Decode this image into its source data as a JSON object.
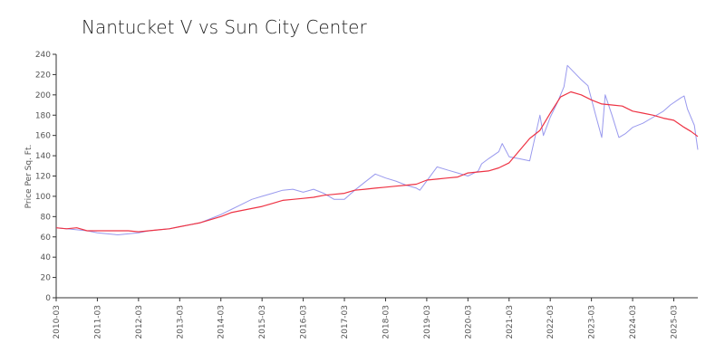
{
  "chart_data": {
    "type": "line",
    "title": "Nantucket V vs Sun City Center",
    "xlabel": "",
    "ylabel": "Price Per Sq. Ft.",
    "ylim": [
      0,
      240
    ],
    "xlim": [
      "2010-03",
      "2025-10"
    ],
    "y_ticks": [
      0,
      20,
      40,
      60,
      80,
      100,
      120,
      140,
      160,
      180,
      200,
      220,
      240
    ],
    "x_ticks": [
      "2010-03",
      "2011-03",
      "2012-03",
      "2013-03",
      "2014-03",
      "2015-03",
      "2016-03",
      "2017-03",
      "2018-03",
      "2019-03",
      "2020-03",
      "2021-03",
      "2022-03",
      "2023-03",
      "2024-03",
      "2025-03"
    ],
    "grid": false,
    "legend": "none",
    "series": [
      {
        "color": "#9999ee",
        "points": [
          [
            "2010-03",
            69
          ],
          [
            "2010-06",
            68
          ],
          [
            "2010-09",
            67
          ],
          [
            "2010-12",
            66
          ],
          [
            "2011-03",
            64
          ],
          [
            "2011-06",
            63
          ],
          [
            "2011-09",
            62
          ],
          [
            "2011-12",
            63
          ],
          [
            "2012-03",
            64
          ],
          [
            "2012-06",
            66
          ],
          [
            "2012-09",
            67
          ],
          [
            "2012-12",
            68
          ],
          [
            "2013-03",
            70
          ],
          [
            "2013-06",
            72
          ],
          [
            "2013-09",
            74
          ],
          [
            "2013-12",
            78
          ],
          [
            "2014-03",
            82
          ],
          [
            "2014-06",
            87
          ],
          [
            "2014-09",
            92
          ],
          [
            "2014-12",
            97
          ],
          [
            "2015-03",
            100
          ],
          [
            "2015-06",
            103
          ],
          [
            "2015-09",
            106
          ],
          [
            "2015-12",
            107
          ],
          [
            "2016-03",
            104
          ],
          [
            "2016-06",
            107
          ],
          [
            "2016-09",
            103
          ],
          [
            "2016-12",
            97
          ],
          [
            "2017-03",
            97
          ],
          [
            "2017-06",
            106
          ],
          [
            "2017-09",
            114
          ],
          [
            "2017-12",
            122
          ],
          [
            "2018-03",
            118
          ],
          [
            "2018-06",
            115
          ],
          [
            "2018-09",
            111
          ],
          [
            "2018-12",
            108
          ],
          [
            "2019-01",
            106
          ],
          [
            "2019-06",
            129
          ],
          [
            "2019-09",
            126
          ],
          [
            "2019-12",
            123
          ],
          [
            "2020-03",
            120
          ],
          [
            "2020-06",
            125
          ],
          [
            "2020-07",
            132
          ],
          [
            "2020-09",
            137
          ],
          [
            "2020-12",
            144
          ],
          [
            "2021-01",
            152
          ],
          [
            "2021-03",
            139
          ],
          [
            "2021-06",
            137
          ],
          [
            "2021-09",
            135
          ],
          [
            "2021-12",
            180
          ],
          [
            "2022-01",
            160
          ],
          [
            "2022-03",
            178
          ],
          [
            "2022-05",
            192
          ],
          [
            "2022-07",
            208
          ],
          [
            "2022-08",
            229
          ],
          [
            "2022-10",
            222
          ],
          [
            "2022-12",
            215
          ],
          [
            "2023-02",
            209
          ],
          [
            "2023-04",
            183
          ],
          [
            "2023-06",
            158
          ],
          [
            "2023-07",
            200
          ],
          [
            "2023-09",
            180
          ],
          [
            "2023-11",
            158
          ],
          [
            "2024-01",
            162
          ],
          [
            "2024-03",
            168
          ],
          [
            "2024-06",
            172
          ],
          [
            "2024-09",
            178
          ],
          [
            "2024-12",
            184
          ],
          [
            "2025-02",
            190
          ],
          [
            "2025-05",
            197
          ],
          [
            "2025-06",
            199
          ],
          [
            "2025-07",
            186
          ],
          [
            "2025-09",
            170
          ],
          [
            "2025-10",
            146
          ]
        ]
      },
      {
        "color": "#ee3344",
        "points": [
          [
            "2010-03",
            69
          ],
          [
            "2010-06",
            68
          ],
          [
            "2010-09",
            69
          ],
          [
            "2010-12",
            66
          ],
          [
            "2011-03",
            66
          ],
          [
            "2011-06",
            66
          ],
          [
            "2011-09",
            66
          ],
          [
            "2011-12",
            66
          ],
          [
            "2012-03",
            65
          ],
          [
            "2012-06",
            66
          ],
          [
            "2012-09",
            67
          ],
          [
            "2012-12",
            68
          ],
          [
            "2013-03",
            70
          ],
          [
            "2013-06",
            72
          ],
          [
            "2013-09",
            74
          ],
          [
            "2013-12",
            77
          ],
          [
            "2014-03",
            80
          ],
          [
            "2014-06",
            84
          ],
          [
            "2014-09",
            86
          ],
          [
            "2014-12",
            88
          ],
          [
            "2015-03",
            90
          ],
          [
            "2015-06",
            93
          ],
          [
            "2015-09",
            96
          ],
          [
            "2015-12",
            97
          ],
          [
            "2016-03",
            98
          ],
          [
            "2016-06",
            99
          ],
          [
            "2016-09",
            101
          ],
          [
            "2016-12",
            102
          ],
          [
            "2017-03",
            103
          ],
          [
            "2017-06",
            106
          ],
          [
            "2017-09",
            107
          ],
          [
            "2017-12",
            108
          ],
          [
            "2018-03",
            109
          ],
          [
            "2018-06",
            110
          ],
          [
            "2018-09",
            111
          ],
          [
            "2018-12",
            112
          ],
          [
            "2019-03",
            116
          ],
          [
            "2019-06",
            117
          ],
          [
            "2019-09",
            118
          ],
          [
            "2019-12",
            119
          ],
          [
            "2020-03",
            123
          ],
          [
            "2020-06",
            124
          ],
          [
            "2020-09",
            125
          ],
          [
            "2020-12",
            128
          ],
          [
            "2021-03",
            133
          ],
          [
            "2021-06",
            145
          ],
          [
            "2021-09",
            157
          ],
          [
            "2021-12",
            165
          ],
          [
            "2022-03",
            182
          ],
          [
            "2022-06",
            198
          ],
          [
            "2022-09",
            203
          ],
          [
            "2022-12",
            200
          ],
          [
            "2023-03",
            195
          ],
          [
            "2023-06",
            191
          ],
          [
            "2023-09",
            190
          ],
          [
            "2023-12",
            189
          ],
          [
            "2024-03",
            184
          ],
          [
            "2024-06",
            182
          ],
          [
            "2024-09",
            180
          ],
          [
            "2024-12",
            177
          ],
          [
            "2025-03",
            175
          ],
          [
            "2025-06",
            168
          ],
          [
            "2025-08",
            164
          ],
          [
            "2025-10",
            159
          ]
        ]
      }
    ]
  }
}
